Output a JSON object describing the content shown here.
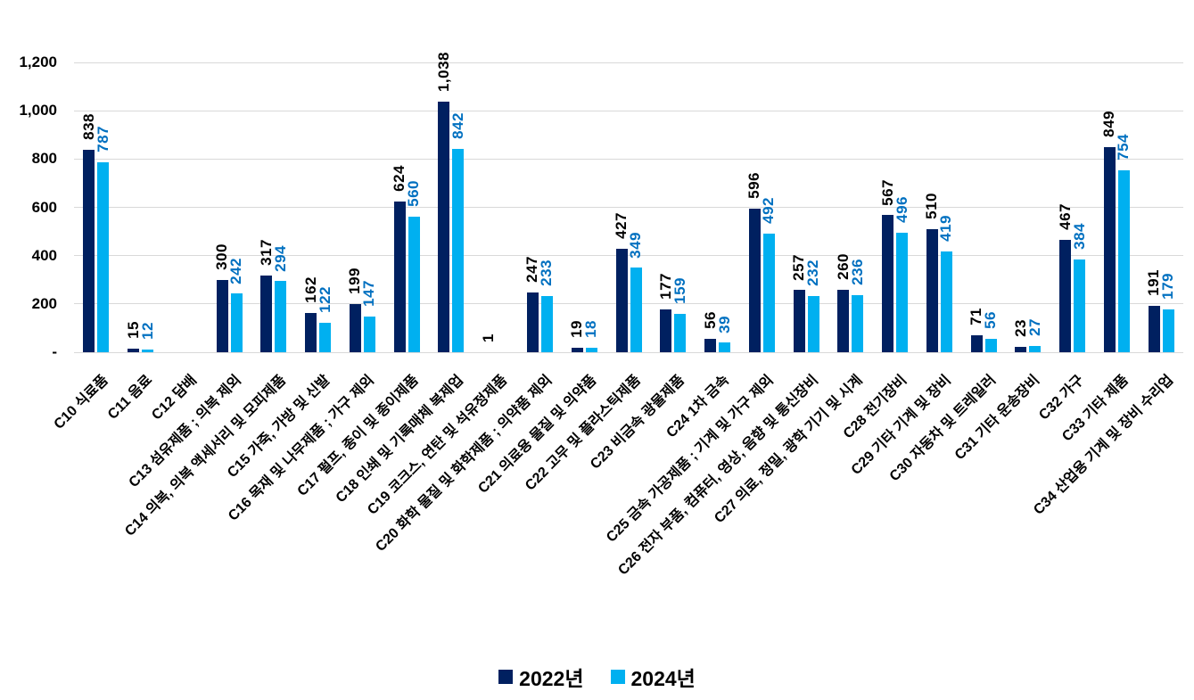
{
  "chart_data": {
    "type": "bar",
    "title": "",
    "categories": [
      "C10 식료품",
      "C11 음료",
      "C12 담배",
      "C13 섬유제품 ; 의복 제외",
      "C14 의복, 의복 액세서리 및 모피제품",
      "C15 가죽, 가방 및 신발",
      "C16 목재 및 나무제품 ; 가구 제외",
      "C17 펄프, 종이 및 종이제품",
      "C18 인쇄 및 기록매체 복제업",
      "C19 코크스, 연탄 및 석유정제품",
      "C20 화학 물질 및 화학제품 ; 의약품 제외",
      "C21 의료용 물질 및 의약품",
      "C22 고무 및 플라스틱제품",
      "C23 비금속 광물제품",
      "C24 1차 금속",
      "C25 금속 가공제품 ; 기계 및 가구 제외",
      "C26 전자 부품, 컴퓨터, 영상, 음향 및 통신장비",
      "C27 의료, 정밀, 광학 기기 및 시계",
      "C28 전기장비",
      "C29 기타 기계 및 장비",
      "C30 자동차 및 트레일러",
      "C31 기타 운송장비",
      "C32 가구",
      "C33 기타 제품",
      "C34 산업용 기계 및 장비 수리업"
    ],
    "series": [
      {
        "name": "2022년",
        "color": "#002060",
        "label_color": "#000000",
        "values": [
          838,
          15,
          null,
          300,
          317,
          162,
          199,
          624,
          1038,
          1,
          247,
          19,
          427,
          177,
          56,
          596,
          257,
          260,
          567,
          510,
          71,
          23,
          467,
          849,
          191
        ],
        "labels": [
          "838",
          "15",
          null,
          "300",
          "317",
          "162",
          "199",
          "624",
          "1,038",
          "1",
          "247",
          "19",
          "427",
          "177",
          "56",
          "596",
          "257",
          "260",
          "567",
          "510",
          "71",
          "23",
          "467",
          "849",
          "191"
        ]
      },
      {
        "name": "2024년",
        "color": "#00B0F0",
        "label_color": "#0070C0",
        "values": [
          787,
          12,
          null,
          242,
          294,
          122,
          147,
          560,
          842,
          null,
          233,
          18,
          349,
          159,
          39,
          492,
          232,
          236,
          496,
          419,
          56,
          27,
          384,
          754,
          179
        ],
        "labels": [
          "787",
          "12",
          null,
          "242",
          "294",
          "122",
          "147",
          "560",
          "842",
          null,
          "233",
          "18",
          "349",
          "159",
          "39",
          "492",
          "232",
          "236",
          "496",
          "419",
          "56",
          "27",
          "384",
          "754",
          "179"
        ]
      }
    ],
    "y_axis": {
      "min": 0,
      "max": 1200,
      "tick_step": 200,
      "tick_labels": [
        "1,200",
        "1,000",
        "800",
        "600",
        "400",
        "200",
        "-"
      ],
      "tick_values": [
        1200,
        1000,
        800,
        600,
        400,
        200,
        0
      ]
    },
    "grid": true,
    "gridline_color": "#D9D9D9",
    "legend_position": "bottom"
  }
}
